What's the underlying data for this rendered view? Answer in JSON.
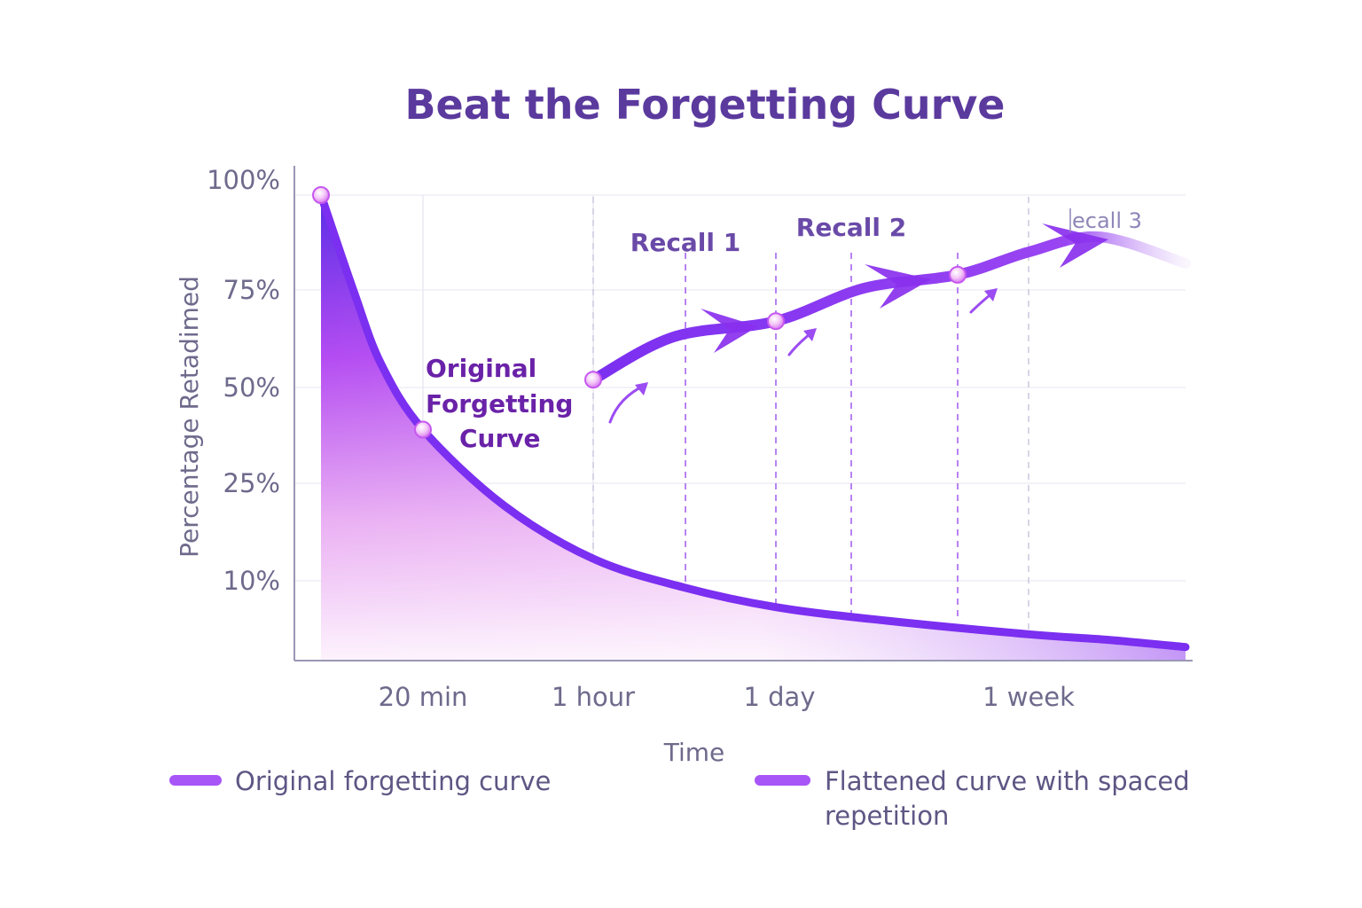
{
  "chart_data": {
    "type": "line",
    "title": "Beat the Forgetting Curve",
    "xlabel": "Time",
    "ylabel": "Percentage Retadimed",
    "x_unit": "minutes",
    "x_ticks": [
      {
        "value": 20,
        "label": "20 min"
      },
      {
        "value": 60,
        "label": "1 hour"
      },
      {
        "value": 1440,
        "label": "1 day"
      },
      {
        "value": 10080,
        "label": "1 week"
      }
    ],
    "y_ticks": [
      {
        "value": 100,
        "label": "100%"
      },
      {
        "value": 75,
        "label": "75%"
      },
      {
        "value": 50,
        "label": "50%"
      },
      {
        "value": 25,
        "label": "25%"
      },
      {
        "value": 10,
        "label": "10%"
      }
    ],
    "x_scale": "non-uniform (piecewise)",
    "y_scale": "non-uniform (piecewise)",
    "grid": true,
    "legend_placement": "bottom",
    "series": [
      {
        "name": "Original forgetting curve",
        "color": "#7b2ff0",
        "fill": true,
        "points": [
          [
            0,
            100
          ],
          [
            6.6,
            74
          ],
          [
            11.8,
            56
          ],
          [
            20,
            39
          ],
          [
            39,
            21.6
          ],
          [
            60,
            13.4
          ],
          [
            737,
            9.2
          ],
          [
            1440,
            6.7
          ],
          [
            5230,
            5
          ],
          [
            10080,
            3.3
          ],
          [
            15205,
            2.6
          ],
          [
            20160,
            1.7
          ]
        ],
        "markers": [
          [
            0,
            100
          ],
          [
            20,
            39
          ]
        ]
      },
      {
        "name": "Flattened curve with spaced repetition",
        "color": "#8a35f0",
        "fill": false,
        "points": [
          [
            60,
            52
          ],
          [
            670,
            63
          ],
          [
            1440,
            67
          ],
          [
            4472,
            75.5
          ],
          [
            7655,
            79
          ],
          [
            10080,
            85
          ],
          [
            14636,
            89
          ],
          [
            20160,
            82
          ]
        ],
        "markers": [
          [
            60,
            52
          ],
          [
            1440,
            67
          ],
          [
            7655,
            79
          ]
        ]
      }
    ],
    "recall_lines": [
      {
        "x": 60,
        "style": "gray"
      },
      {
        "x": 757,
        "style": "purple"
      },
      {
        "x": 1440,
        "style": "purple"
      },
      {
        "x": 4017,
        "style": "purple"
      },
      {
        "x": 7655,
        "style": "purple"
      },
      {
        "x": 10080,
        "style": "gray"
      }
    ],
    "annotations": {
      "original_curve": [
        "Original",
        "Forgetting",
        "Curve"
      ],
      "recall_1": "Recall 1",
      "recall_2": "Recall 2",
      "recall_3": "ecall 3"
    },
    "legend": [
      {
        "label": "Original forgetting curve",
        "color": "#a855f7"
      },
      {
        "label_lines": [
          "Flattened curve with spaced",
          "repetition"
        ],
        "color": "#a855f7"
      }
    ]
  }
}
